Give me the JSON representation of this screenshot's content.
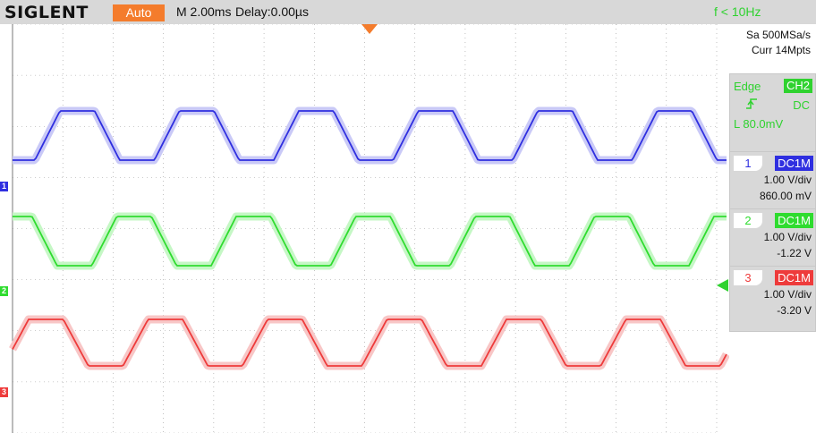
{
  "header": {
    "brand": "SIGLENT",
    "mode": "Auto",
    "timebase": "M 2.00ms",
    "delay": "Delay:0.00µs",
    "frequency": "f < 10Hz"
  },
  "acquisition": {
    "sample_rate": "Sa 500MSa/s",
    "memory": "Curr 14Mpts"
  },
  "trigger": {
    "type": "Edge",
    "source": "CH2",
    "slope_icon": "rising-edge-icon",
    "coupling": "DC",
    "level": "L  80.0mV"
  },
  "channels": [
    {
      "number": "1",
      "coupling": "DC1M",
      "vdiv": "1.00 V/div",
      "offset": "860.00 mV",
      "color": "#2f2fe0",
      "fill": "#c9c9f7"
    },
    {
      "number": "2",
      "coupling": "DC1M",
      "vdiv": "1.00 V/div",
      "offset": "-1.22 V",
      "color": "#2fdc2f",
      "fill": "#c5f7c5"
    },
    {
      "number": "3",
      "coupling": "DC1M",
      "vdiv": "1.00 V/div",
      "offset": "-3.20 V",
      "color": "#ee3b3b",
      "fill": "#f8c6c6"
    }
  ],
  "colors": {
    "header_bg": "#d8d8d8",
    "auto_badge": "#f47c2c",
    "grid": "#9a9a9a"
  }
}
